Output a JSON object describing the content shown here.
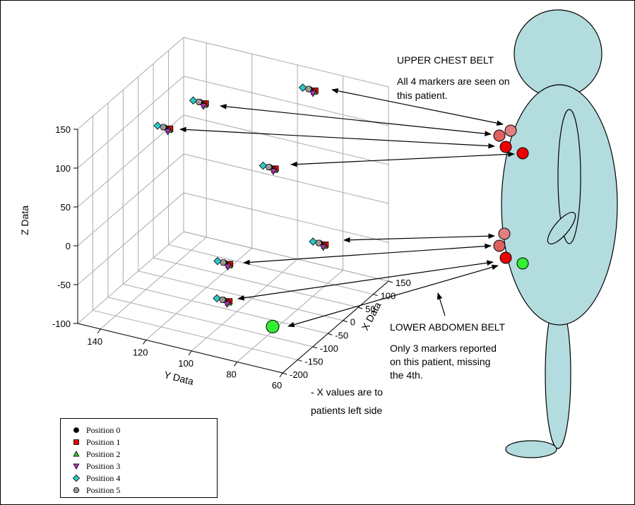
{
  "chart_data": {
    "type": "scatter3d",
    "x_label": "X Data",
    "y_label": "Y Data",
    "z_label": "Z Data",
    "xlim": [
      -200,
      150
    ],
    "ylim": [
      60,
      150
    ],
    "zlim": [
      -100,
      150
    ],
    "xticks": [
      -200,
      -150,
      -100,
      -50,
      0,
      50,
      100,
      150
    ],
    "yticks": [
      60,
      80,
      100,
      120,
      140
    ],
    "zticks": [
      -100,
      -50,
      0,
      50,
      100,
      150
    ],
    "grid": true,
    "series": [
      {
        "name": "Position 0",
        "color": "#000000",
        "marker": "circle",
        "x": [
          100,
          50,
          0,
          -50,
          100,
          -50,
          -150
        ],
        "y": [
          88,
          129.5,
          138.5,
          85.5,
          83.5,
          105.5,
          92.5
        ],
        "z": [
          144,
          115,
          93,
          96,
          -51,
          -41,
          -46
        ]
      },
      {
        "name": "Position 1",
        "color": "#e00000",
        "marker": "square",
        "x": [
          100,
          50,
          0,
          -50,
          100,
          -50,
          -150
        ],
        "y": [
          85.5,
          127,
          136,
          83,
          81,
          103,
          90
        ],
        "z": [
          144,
          115,
          93,
          96,
          -51,
          -41,
          -46
        ]
      },
      {
        "name": "Position 2",
        "color": "#22cc22",
        "marker": "triangle-up",
        "x": [
          100,
          50,
          0,
          -50,
          100,
          -50,
          -150
        ],
        "y": [
          86,
          127.5,
          136.5,
          83.5,
          81.5,
          103.5,
          90.5
        ],
        "z": [
          142,
          113,
          91,
          94,
          -53,
          -43,
          -48
        ]
      },
      {
        "name": "Position 3",
        "color": "#b030b0",
        "marker": "triangle-down",
        "x": [
          100,
          50,
          0,
          -50,
          100,
          -50,
          -150
        ],
        "y": [
          86.5,
          128,
          137,
          84,
          82,
          104,
          91
        ],
        "z": [
          140,
          111,
          89,
          92,
          -55,
          -45,
          -50
        ]
      },
      {
        "name": "Position 4",
        "color": "#2cc8c8",
        "marker": "diamond",
        "x": [
          100,
          50,
          0,
          -50,
          100,
          -50,
          -150
        ],
        "y": [
          91,
          132.5,
          141.5,
          88.5,
          86.5,
          108.5,
          95.5
        ],
        "z": [
          144,
          115,
          93,
          96,
          -51,
          -41,
          -46
        ]
      },
      {
        "name": "Position 5",
        "color": "#999999",
        "marker": "hexagon",
        "x": [
          100,
          50,
          0,
          -50,
          100,
          -50,
          -150
        ],
        "y": [
          88.5,
          130,
          139,
          86,
          84,
          106,
          93
        ],
        "z": [
          144,
          115,
          93,
          96,
          -51,
          -41,
          -46
        ]
      }
    ],
    "highlight_point": {
      "x": -150,
      "y": 71,
      "z": -65,
      "color": "#33ee33"
    }
  },
  "annotations": {
    "upper_title": "UPPER CHEST BELT",
    "upper_text": [
      "All 4 markers are seen on",
      "this patient."
    ],
    "lower_title": "LOWER ABDOMEN BELT",
    "lower_text": [
      "Only 3 markers reported",
      "on this patient, missing",
      "the 4th."
    ],
    "x_note": [
      "- X values are to",
      "patients left side"
    ]
  }
}
